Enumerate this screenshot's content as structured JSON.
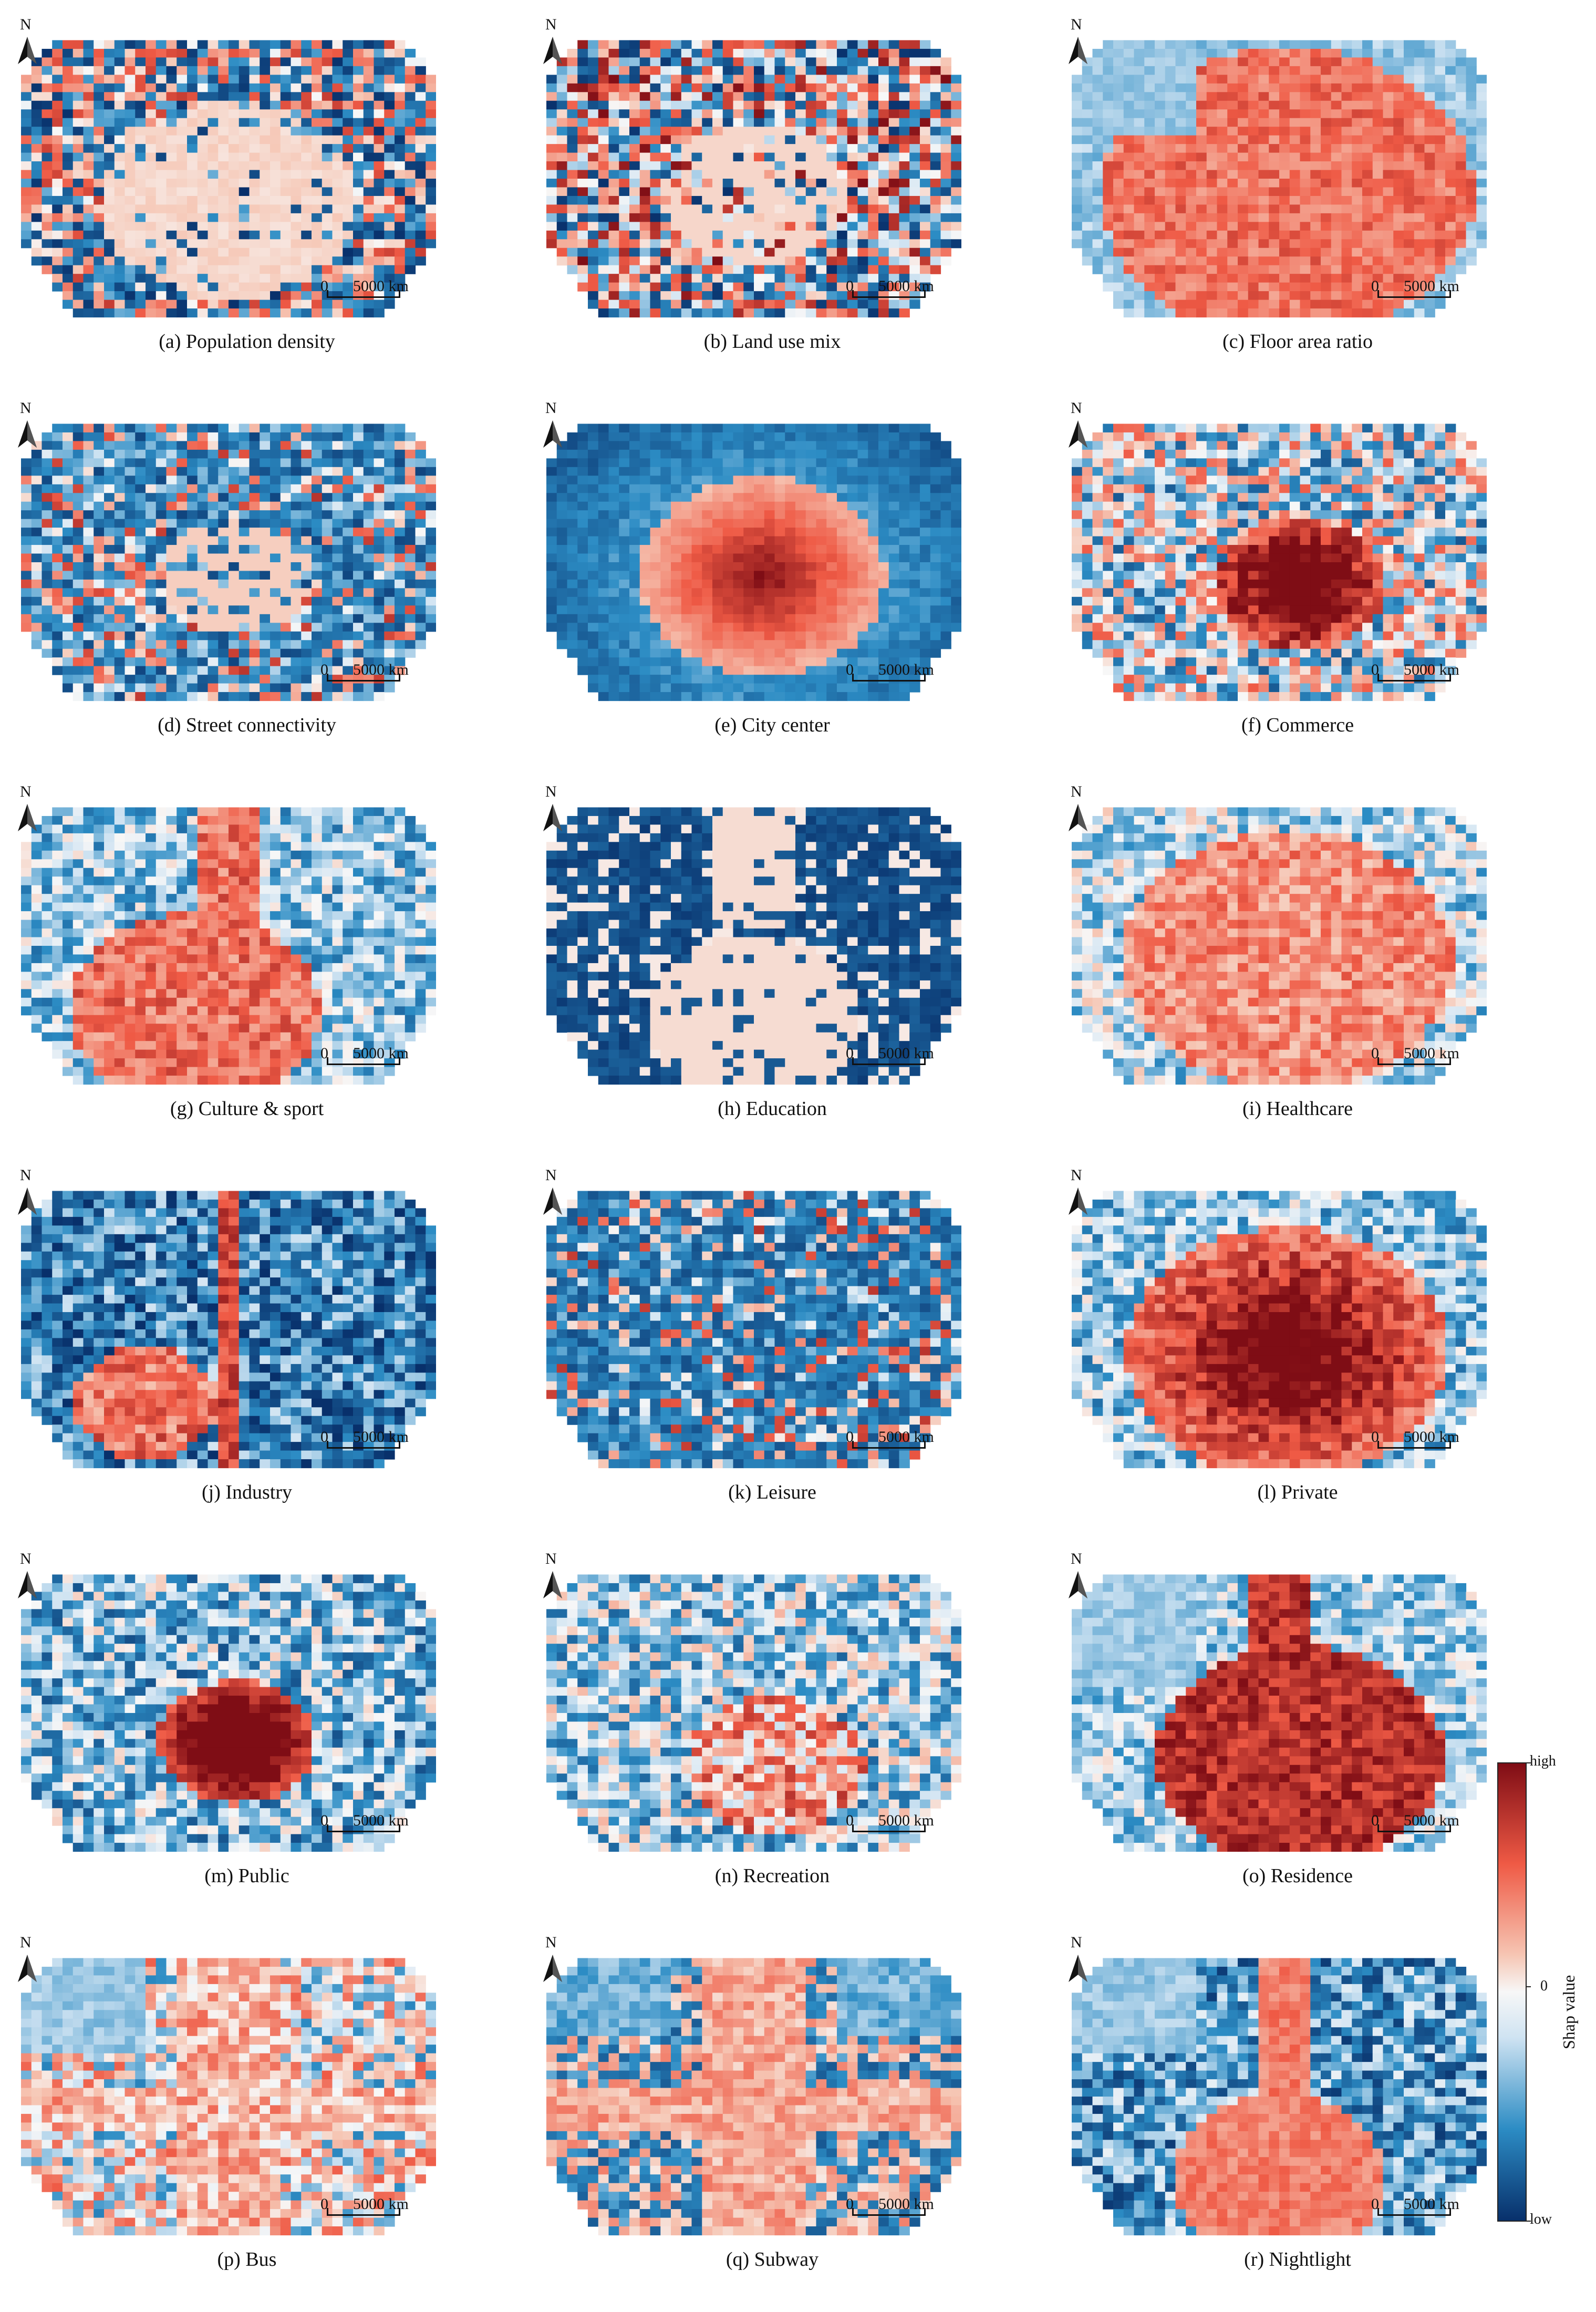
{
  "panels": [
    {
      "id": "a",
      "caption": "(a) Population density",
      "pattern": "pop"
    },
    {
      "id": "b",
      "caption": "(b) Land use mix",
      "pattern": "mix"
    },
    {
      "id": "c",
      "caption": "(c) Floor area ratio",
      "pattern": "far"
    },
    {
      "id": "d",
      "caption": "(d) Street connectivity",
      "pattern": "street"
    },
    {
      "id": "e",
      "caption": "(e) City center",
      "pattern": "center"
    },
    {
      "id": "f",
      "caption": "(f) Commerce",
      "pattern": "commerce"
    },
    {
      "id": "g",
      "caption": "(g) Culture & sport",
      "pattern": "culture"
    },
    {
      "id": "h",
      "caption": "(h) Education",
      "pattern": "education"
    },
    {
      "id": "i",
      "caption": "(i) Healthcare",
      "pattern": "health"
    },
    {
      "id": "j",
      "caption": "(j) Industry",
      "pattern": "industry"
    },
    {
      "id": "k",
      "caption": "(k) Leisure",
      "pattern": "leisure"
    },
    {
      "id": "l",
      "caption": "(l) Private",
      "pattern": "private"
    },
    {
      "id": "m",
      "caption": "(m) Public",
      "pattern": "public"
    },
    {
      "id": "n",
      "caption": "(n) Recreation",
      "pattern": "recreation"
    },
    {
      "id": "o",
      "caption": "(o) Residence",
      "pattern": "residence"
    },
    {
      "id": "p",
      "caption": "(p) Bus",
      "pattern": "bus"
    },
    {
      "id": "q",
      "caption": "(q) Subway",
      "pattern": "subway"
    },
    {
      "id": "r",
      "caption": "(r) Nightlight",
      "pattern": "nightlight"
    }
  ],
  "north_label": "N",
  "scale": {
    "zero": "0",
    "distance": "5000 km"
  },
  "legend": {
    "title": "Shap value",
    "high": "high",
    "mid": "0",
    "low": "low",
    "colors": {
      "low": "#08306b",
      "mid_low": "#2c8cc4",
      "light_blue": "#cfe3f2",
      "zero": "#f7f7f7",
      "light_red": "#f6c6b4",
      "mid_high": "#ef5a45",
      "high": "#7f0d15"
    }
  }
}
